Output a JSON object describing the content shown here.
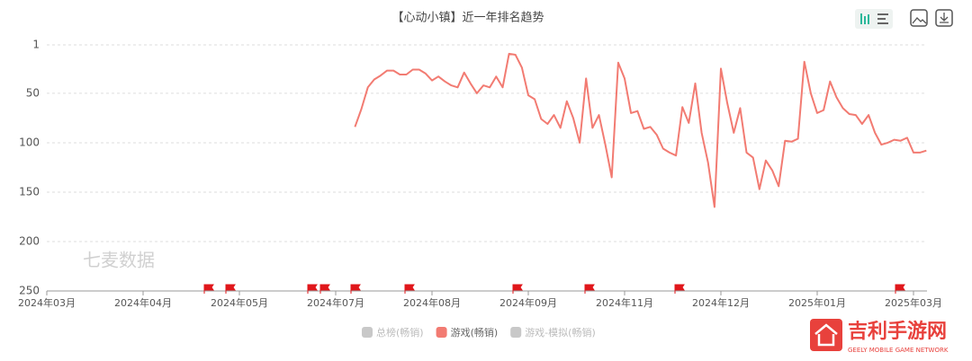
{
  "chart_data": {
    "type": "line",
    "title": "【心动小镇】近一年排名趋势",
    "categories": [
      "2024年03月",
      null,
      null,
      null,
      null,
      null,
      null,
      null,
      null,
      null,
      null,
      null,
      null,
      null,
      null,
      "2024年04月",
      null,
      null,
      null,
      null,
      null,
      null,
      null,
      null,
      null,
      null,
      null,
      null,
      null,
      null,
      "2024年05月",
      null,
      null,
      null,
      null,
      null,
      null,
      null,
      null,
      null,
      null,
      null,
      null,
      null,
      null,
      "2024年07月",
      null,
      null,
      null,
      null,
      null,
      null,
      null,
      null,
      null,
      null,
      null,
      null,
      null,
      null,
      "2024年08月",
      null,
      null,
      null,
      null,
      null,
      null,
      null,
      null,
      null,
      null,
      null,
      null,
      null,
      null,
      "2024年09月",
      null,
      null,
      null,
      null,
      null,
      null,
      null,
      null,
      null,
      null,
      null,
      null,
      null,
      null,
      "2024年11月",
      null,
      null,
      null,
      null,
      null,
      null,
      null,
      null,
      null,
      null,
      null,
      null,
      null,
      null,
      "2024年12月",
      null,
      null,
      null,
      null,
      null,
      null,
      null,
      null,
      null,
      null,
      null,
      null,
      null,
      null,
      "2025年01月",
      null,
      null,
      null,
      null,
      null,
      null,
      null,
      null,
      null,
      null,
      null,
      null,
      null,
      null,
      "2025年03月",
      null,
      null
    ],
    "series": [
      {
        "name": "游戏(畅销)",
        "color": "#f27b72",
        "values": [
          null,
          null,
          null,
          null,
          null,
          null,
          null,
          null,
          null,
          null,
          null,
          null,
          null,
          null,
          null,
          null,
          null,
          null,
          null,
          null,
          null,
          null,
          null,
          null,
          null,
          null,
          null,
          null,
          null,
          null,
          null,
          null,
          null,
          null,
          null,
          null,
          null,
          null,
          null,
          null,
          null,
          null,
          null,
          null,
          null,
          null,
          null,
          null,
          84,
          66,
          44,
          36,
          32,
          27,
          27,
          31,
          31,
          26,
          26,
          30,
          37,
          33,
          38,
          42,
          44,
          29,
          40,
          50,
          42,
          44,
          33,
          44,
          10,
          11,
          24,
          52,
          56,
          76,
          81,
          72,
          85,
          58,
          75,
          100,
          35,
          85,
          72,
          102,
          135,
          19,
          35,
          70,
          68,
          86,
          84,
          92,
          106,
          110,
          113,
          64,
          80,
          40,
          90,
          120,
          165,
          25,
          60,
          90,
          65,
          110,
          115,
          147,
          118,
          128,
          144,
          98,
          99,
          96,
          18,
          50,
          70,
          67,
          38,
          54,
          65,
          71,
          72,
          81,
          72,
          90,
          102,
          100,
          97,
          98,
          95,
          110,
          110,
          108
        ]
      }
    ],
    "inactive_legend": [
      {
        "name": "总榜(畅销)",
        "color": "#c8c8c8"
      },
      {
        "name": "游戏-模拟(畅销)",
        "color": "#c8c8c8"
      }
    ],
    "ylim": [
      250,
      1
    ],
    "yticks": [
      1,
      50,
      100,
      150,
      200,
      250
    ],
    "grid": true,
    "watermark": "七麦数据",
    "logo_text": "吉利手游网",
    "logo_subtext": "GEELY MOBILE GAME NETWORK"
  }
}
